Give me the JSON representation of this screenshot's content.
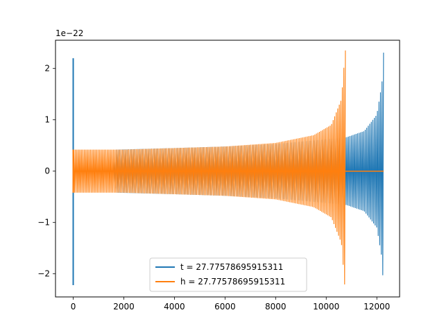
{
  "chart_data": {
    "type": "line",
    "title": "",
    "xlabel": "",
    "ylabel": "",
    "y_offset_label": "1e−22",
    "xlim": [
      -700,
      12900
    ],
    "ylim": [
      -2.45,
      2.55
    ],
    "x_ticks": [
      0,
      2000,
      4000,
      6000,
      8000,
      10000,
      12000
    ],
    "x_tick_labels": [
      "0",
      "2000",
      "4000",
      "6000",
      "8000",
      "10000",
      "12000"
    ],
    "y_ticks": [
      -2,
      -1,
      0,
      1,
      2
    ],
    "y_tick_labels": [
      "−2",
      "−1",
      "0",
      "1",
      "2"
    ],
    "grid": false,
    "legend": {
      "placement": "lower-center",
      "entries": [
        {
          "label": "t = 27.77578695915311",
          "color": "#1f77b4"
        },
        {
          "label": "h = 27.77578695915311",
          "color": "#ff7f0e"
        }
      ]
    },
    "series": [
      {
        "key": "t",
        "color": "#1f77b4",
        "x_range": [
          0,
          12270
        ],
        "transient": {
          "x": 0,
          "max": 2.2,
          "min": -2.22
        },
        "envelope": [
          [
            20,
            0.0
          ],
          [
            1600,
            0.02
          ],
          [
            1700,
            0.42
          ],
          [
            4000,
            0.45
          ],
          [
            6000,
            0.48
          ],
          [
            8000,
            0.53
          ],
          [
            10000,
            0.62
          ],
          [
            10800,
            0.66
          ],
          [
            11500,
            0.78
          ],
          [
            12000,
            1.1
          ],
          [
            12200,
            1.7
          ],
          [
            12270,
            2.35
          ]
        ],
        "tail_x": 12270
      },
      {
        "key": "h",
        "color": "#ff7f0e",
        "x_range": [
          0,
          12270
        ],
        "transient": {
          "x": 0,
          "max": 0.42,
          "min": -0.42
        },
        "envelope": [
          [
            20,
            0.42
          ],
          [
            2000,
            0.42
          ],
          [
            4000,
            0.45
          ],
          [
            6000,
            0.48
          ],
          [
            8000,
            0.55
          ],
          [
            9500,
            0.7
          ],
          [
            10200,
            0.9
          ],
          [
            10600,
            1.4
          ],
          [
            10750,
            2.35
          ]
        ],
        "tail_x": 10760,
        "flat_after": [
          10760,
          12270
        ]
      }
    ]
  }
}
